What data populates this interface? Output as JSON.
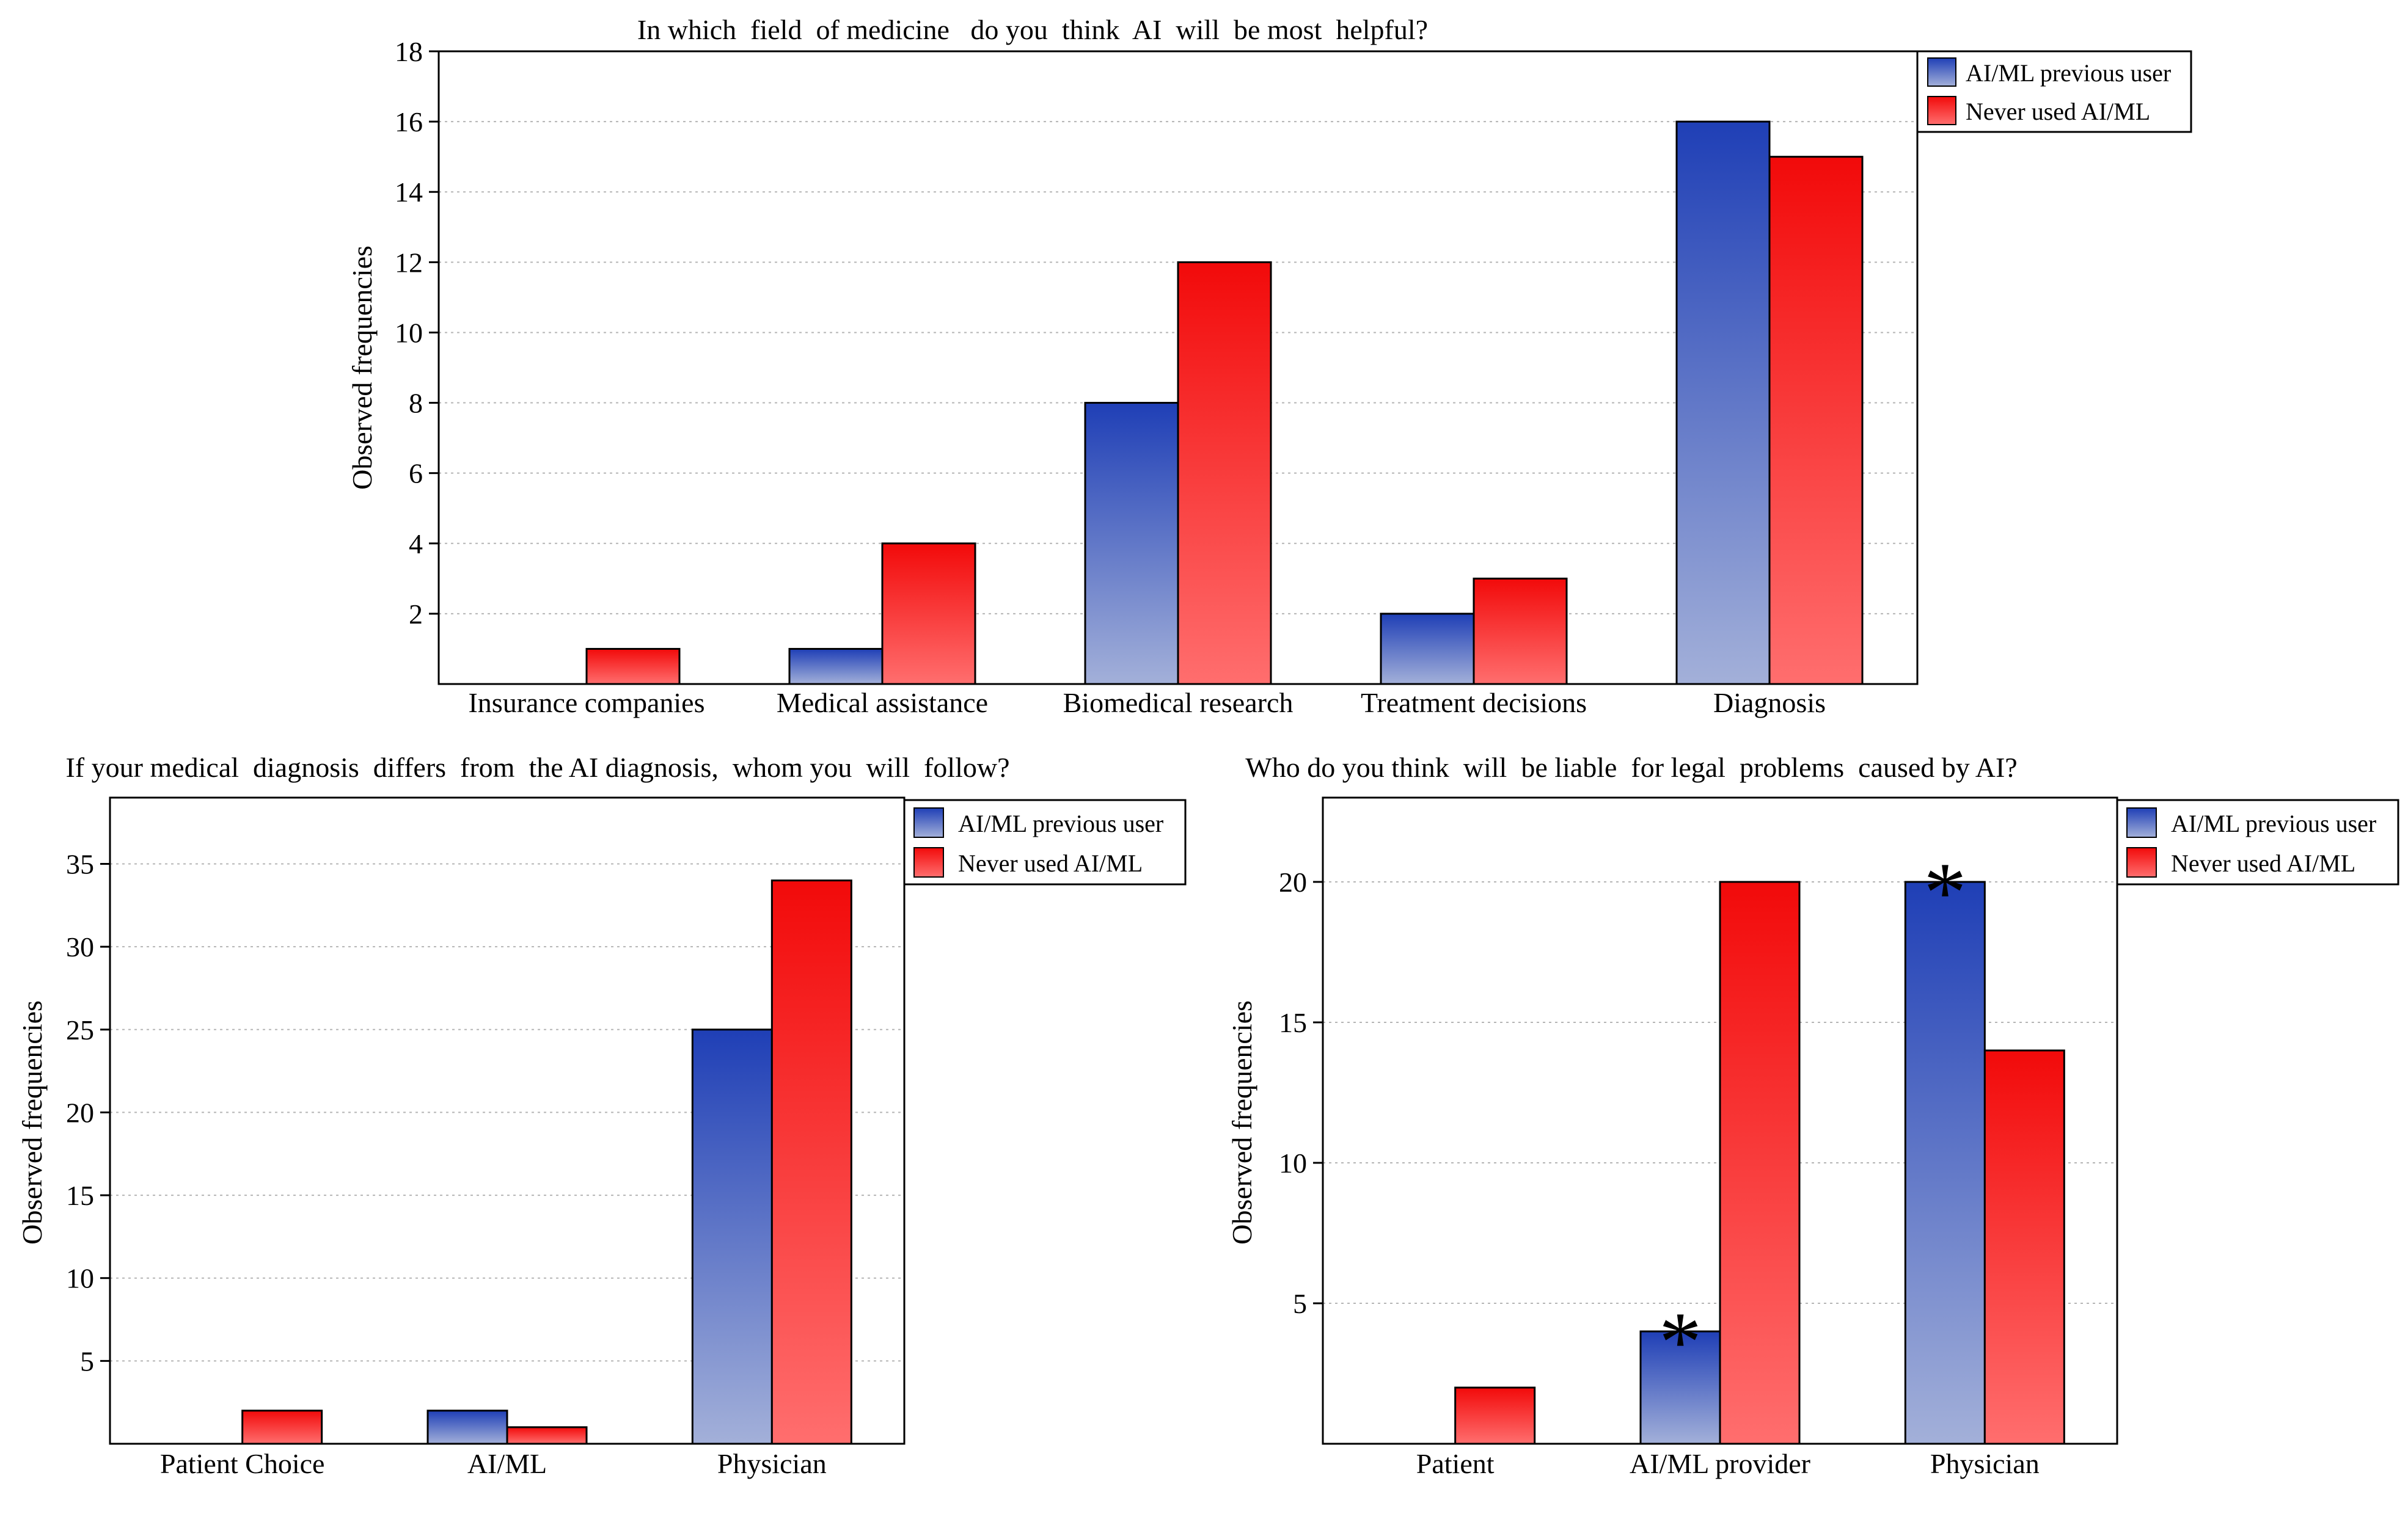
{
  "colors": {
    "ai_ml_user": {
      "top": "#1f3fb6",
      "bottom": "#a3b0d9"
    },
    "never_used": {
      "top": "#f20a0a",
      "bottom": "#ff6e6e"
    }
  },
  "chart_data": [
    {
      "type": "bar",
      "title": "In which  field  of medicine   do you  think  AI  will  be most  helpful?",
      "xlabel": "",
      "ylabel": "Observed frequencies",
      "categories": [
        "Insurance companies",
        "Medical assistance",
        "Biomedical research",
        "Treatment decisions",
        "Diagnosis"
      ],
      "series": [
        {
          "name": "AI/ML previous user",
          "values": [
            0,
            1,
            8,
            2,
            16
          ]
        },
        {
          "name": "Never used AI/ML",
          "values": [
            1,
            4,
            12,
            3,
            15
          ]
        }
      ],
      "ylim": [
        0,
        18
      ],
      "yticks": [
        2,
        4,
        6,
        8,
        10,
        12,
        14,
        16,
        18
      ],
      "grid": true,
      "legend_position": "top-right",
      "annotations": []
    },
    {
      "type": "bar",
      "title": "If your medical  diagnosis  differs  from  the AI diagnosis,  whom you  will  follow?",
      "xlabel": "",
      "ylabel": "Observed frequencies",
      "categories": [
        "Patient Choice",
        "AI/ML",
        "Physician"
      ],
      "series": [
        {
          "name": "AI/ML previous user",
          "values": [
            0,
            2,
            25
          ]
        },
        {
          "name": "Never used AI/ML",
          "values": [
            2,
            1,
            34
          ]
        }
      ],
      "ylim": [
        0,
        39
      ],
      "yticks": [
        5,
        10,
        15,
        20,
        25,
        30,
        35
      ],
      "grid": true,
      "legend_position": "top-right",
      "annotations": []
    },
    {
      "type": "bar",
      "title": "Who do you think  will  be liable  for legal  problems  caused by AI?",
      "xlabel": "",
      "ylabel": "Observed frequencies",
      "categories": [
        "Patient",
        "AI/ML provider",
        "Physician"
      ],
      "series": [
        {
          "name": "AI/ML previous user",
          "values": [
            0,
            4,
            20
          ]
        },
        {
          "name": "Never used AI/ML",
          "values": [
            2,
            20,
            14
          ]
        }
      ],
      "ylim": [
        0,
        23
      ],
      "yticks": [
        5,
        10,
        15,
        20
      ],
      "grid": true,
      "legend_position": "top-right",
      "annotations": [
        {
          "text": "*",
          "category": 1,
          "series": 0
        },
        {
          "text": "*",
          "category": 2,
          "series": 0
        }
      ]
    }
  ]
}
